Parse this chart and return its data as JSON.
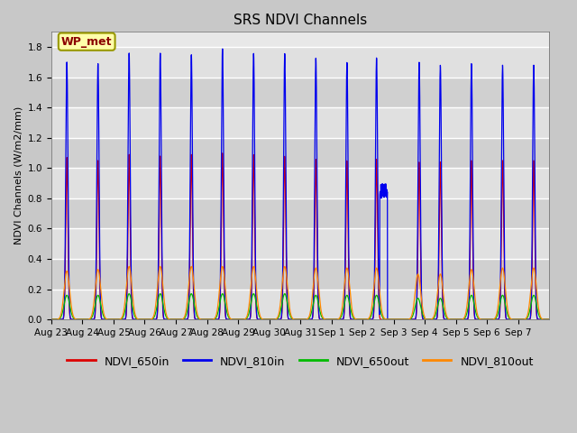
{
  "title": "SRS NDVI Channels",
  "ylabel": "NDVI Channels (W/m2/mm)",
  "ylim": [
    0,
    1.9
  ],
  "yticks": [
    0.0,
    0.2,
    0.4,
    0.6,
    0.8,
    1.0,
    1.2,
    1.4,
    1.6,
    1.8
  ],
  "colors": {
    "NDVI_650in": "#dd0000",
    "NDVI_810in": "#0000ee",
    "NDVI_650out": "#00bb00",
    "NDVI_810out": "#ff8800"
  },
  "x_tick_labels": [
    "Aug 23",
    "Aug 24",
    "Aug 25",
    "Aug 26",
    "Aug 27",
    "Aug 28",
    "Aug 29",
    "Aug 30",
    "Aug 31",
    "Sep 1",
    "Sep 2",
    "Sep 3",
    "Sep 4",
    "Sep 5",
    "Sep 6",
    "Sep 7"
  ],
  "legend_label": "WP_met",
  "n_days": 16,
  "peak_heights_810in": [
    1.7,
    1.69,
    1.76,
    1.76,
    1.75,
    1.79,
    1.76,
    1.76,
    1.73,
    1.7,
    1.73,
    1.7,
    1.68,
    1.69,
    1.68,
    1.68
  ],
  "peak_heights_650in": [
    1.07,
    1.05,
    1.09,
    1.08,
    1.09,
    1.1,
    1.09,
    1.08,
    1.06,
    1.05,
    1.06,
    1.04,
    1.04,
    1.05,
    1.05,
    1.05
  ],
  "peak_heights_810out": [
    0.32,
    0.33,
    0.35,
    0.35,
    0.35,
    0.35,
    0.35,
    0.35,
    0.34,
    0.34,
    0.34,
    0.3,
    0.3,
    0.33,
    0.34,
    0.34
  ],
  "peak_heights_650out": [
    0.16,
    0.16,
    0.17,
    0.17,
    0.17,
    0.17,
    0.17,
    0.17,
    0.16,
    0.16,
    0.16,
    0.14,
    0.14,
    0.16,
    0.16,
    0.16
  ]
}
